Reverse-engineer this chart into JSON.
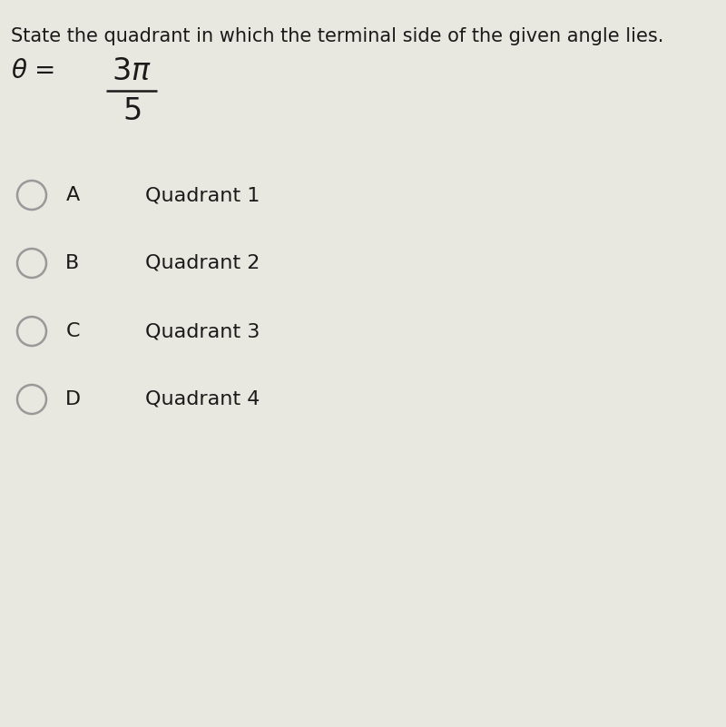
{
  "title": "State the quadrant in which the terminal side of the given angle lies.",
  "options": [
    {
      "letter": "A",
      "text": "Quadrant 1"
    },
    {
      "letter": "B",
      "text": "Quadrant 2"
    },
    {
      "letter": "C",
      "text": "Quadrant 3"
    },
    {
      "letter": "D",
      "text": "Quadrant 4"
    }
  ],
  "bg_color": "#e8e8e0",
  "text_color": "#1a1a1a",
  "circle_edge_color": "#999999",
  "title_fontsize": 15,
  "option_fontsize": 16,
  "math_fontsize": 20
}
